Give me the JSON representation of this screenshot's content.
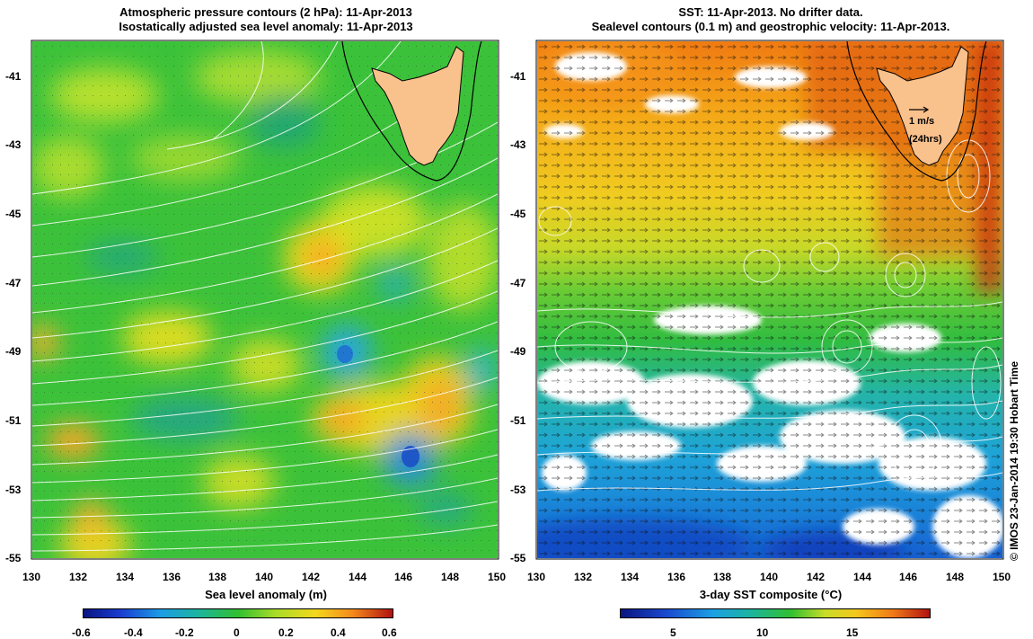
{
  "left_panel": {
    "title_line1": "Atmospheric pressure contours (2 hPa): 11-Apr-2013",
    "title_line2": "Isostatically adjusted sea level anomaly: 11-Apr-2013",
    "colorbar_label": "Sea level anomaly (m)",
    "colorbar_ticks": [
      "-0.6",
      "-0.4",
      "-0.2",
      "0",
      "0.2",
      "0.4",
      "0.6"
    ]
  },
  "right_panel": {
    "title_line1": "SST: 11-Apr-2013. No drifter data.",
    "title_line2": "Sealevel contours (0.1 m) and geostrophic velocity: 11-Apr-2013.",
    "colorbar_label": "3-day SST composite (°C)",
    "colorbar_ticks": [
      "5",
      "10",
      "15"
    ],
    "scale_label_1": "1 m/s",
    "scale_label_2": "(24hrs)"
  },
  "lat_ticks": [
    "-41",
    "-43",
    "-45",
    "-47",
    "-49",
    "-51",
    "-53",
    "-55"
  ],
  "lon_ticks": [
    "130",
    "132",
    "134",
    "136",
    "138",
    "140",
    "142",
    "144",
    "146",
    "148",
    "150"
  ],
  "credit": "© IMOS 23-Jan-2014 19:30 Hobart Time",
  "colors": {
    "land": "#f9c18c",
    "no_data": "#ffffff",
    "contour": "#ffffff",
    "coastline": "#000000"
  },
  "chart_data": [
    {
      "type": "heatmap",
      "variable": "Sea level anomaly (m)",
      "x_range": [
        130,
        150
      ],
      "y_range": [
        -55,
        -40
      ],
      "color_range": [
        -0.6,
        0.6
      ],
      "features": [
        {
          "lon": 143.5,
          "lat": -49.2,
          "value": -0.3
        },
        {
          "lon": 146.3,
          "lat": -52.0,
          "value": -0.35
        },
        {
          "lon": 145.0,
          "lat": -47.0,
          "value": -0.15
        },
        {
          "lon": 149.8,
          "lat": -49.6,
          "value": -0.2
        },
        {
          "lon": 142.5,
          "lat": -46.3,
          "value": 0.4
        },
        {
          "lon": 143.5,
          "lat": -51.0,
          "value": 0.4
        },
        {
          "lon": 147.8,
          "lat": -50.7,
          "value": 0.35
        },
        {
          "lon": 131.5,
          "lat": -51.8,
          "value": 0.35
        },
        {
          "lon": 133.0,
          "lat": -54.0,
          "value": 0.3
        },
        {
          "lon": 130.2,
          "lat": -48.8,
          "value": 0.35
        }
      ]
    },
    {
      "type": "heatmap",
      "variable": "3-day SST composite (°C)",
      "x_range": [
        130,
        150
      ],
      "y_range": [
        -55,
        -40
      ],
      "color_range": [
        1,
        19
      ],
      "features": [
        {
          "lat": -41,
          "value": 16
        },
        {
          "lat": -44,
          "value": 14
        },
        {
          "lat": -46.5,
          "value": 11
        },
        {
          "lat": -48.5,
          "value": 10
        },
        {
          "lat": -51,
          "value": 7
        },
        {
          "lat": -54.5,
          "value": 3
        }
      ]
    }
  ]
}
